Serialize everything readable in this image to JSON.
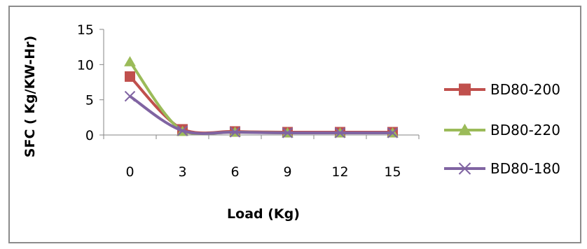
{
  "chart_data": {
    "type": "line",
    "title": "",
    "xlabel": "Load (Kg)",
    "ylabel": "SFC ( Kg/KW-Hr)",
    "categories": [
      "0",
      "3",
      "6",
      "9",
      "12",
      "15"
    ],
    "ylim": [
      0,
      15
    ],
    "yticks": [
      0,
      5,
      10,
      15
    ],
    "grid": false,
    "legend_position": "right",
    "series": [
      {
        "name": "BD80-200",
        "color": "#c0504d",
        "marker": "square",
        "values": [
          8.3,
          0.8,
          0.5,
          0.4,
          0.4,
          0.4
        ]
      },
      {
        "name": "BD80-220",
        "color": "#9bbb59",
        "marker": "triangle",
        "values": [
          10.4,
          0.5,
          0.4,
          0.3,
          0.3,
          0.3
        ]
      },
      {
        "name": "BD80-180",
        "color": "#8064a2",
        "marker": "x",
        "values": [
          5.5,
          0.6,
          0.4,
          0.3,
          0.3,
          0.3
        ]
      }
    ]
  }
}
